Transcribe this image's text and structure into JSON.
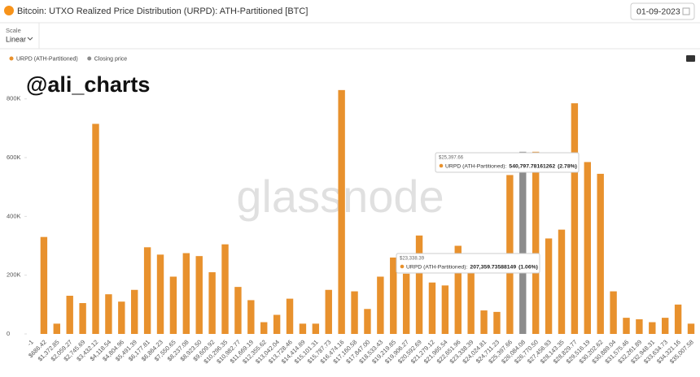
{
  "header": {
    "title": "Bitcoin: UTXO Realized Price Distribution (URPD): ATH-Partitioned [BTC]",
    "date": "01-09-2023",
    "scale_label": "Scale",
    "scale_value": "Linear"
  },
  "watermark": "@ali_charts",
  "brand": "glassnode",
  "chart_data": {
    "type": "bar",
    "categories": [
      "-1",
      "$686.42",
      "$1,372.85",
      "$2,059.27",
      "$2,745.69",
      "$3,432.12",
      "$4,118.54",
      "$4,804.96",
      "$5,491.39",
      "$6,177.81",
      "$6,864.23",
      "$7,550.65",
      "$8,237.08",
      "$8,923.50",
      "$9,609.92",
      "$10,296.35",
      "$10,982.77",
      "$11,669.19",
      "$12,355.62",
      "$13,042.04",
      "$13,728.46",
      "$14,414.89",
      "$15,101.31",
      "$15,787.73",
      "$16,474.16",
      "$17,160.58",
      "$17,847.00",
      "$18,533.43",
      "$19,219.85",
      "$19,906.27",
      "$20,592.69",
      "$21,279.12",
      "$21,965.54",
      "$22,651.96",
      "$23,338.39",
      "$24,024.81",
      "$24,711.23",
      "$25,397.66",
      "$26,084.08",
      "$26,770.50",
      "$27,456.93",
      "$28,143.35",
      "$28,829.77",
      "$29,516.19",
      "$30,202.62",
      "$30,889.04",
      "$31,575.46",
      "$32,261.89",
      "$32,948.31",
      "$33,634.73",
      "$34,321.16",
      "$35,007.58"
    ],
    "series": [
      {
        "name": "URPD (ATH-Partitioned)",
        "color": "#e8912d",
        "values": [
          null,
          330000,
          35000,
          130000,
          105000,
          715000,
          135000,
          110000,
          150000,
          295000,
          270000,
          195000,
          275000,
          265000,
          210000,
          305000,
          160000,
          115000,
          40000,
          65000,
          120000,
          35000,
          35000,
          150000,
          830000,
          145000,
          85000,
          195000,
          260000,
          205000,
          335000,
          175000,
          165000,
          300000,
          207359.73588149,
          80000,
          75000,
          540797.78161262,
          null,
          620000,
          325000,
          355000,
          785000,
          585000,
          545000,
          145000,
          55000,
          50000,
          40000,
          55000,
          100000,
          35000
        ]
      },
      {
        "name": "Closing price",
        "color": "#8c8c8c",
        "values": [
          null,
          null,
          null,
          null,
          null,
          null,
          null,
          null,
          null,
          null,
          null,
          null,
          null,
          null,
          null,
          null,
          null,
          null,
          null,
          null,
          null,
          null,
          null,
          null,
          null,
          null,
          null,
          null,
          null,
          null,
          null,
          null,
          null,
          null,
          null,
          null,
          null,
          null,
          620000,
          null,
          null,
          null,
          null,
          null,
          null,
          null,
          null,
          null,
          null,
          null,
          null,
          null
        ]
      }
    ],
    "ylim": [
      0,
      860000
    ],
    "yticks": [
      0,
      {
        "value": 200000,
        "label": "200K"
      },
      {
        "value": 400000,
        "label": "400K"
      },
      {
        "value": 600000,
        "label": "600K"
      },
      {
        "value": 800000,
        "label": "800K"
      }
    ],
    "grid": false,
    "tooltips": [
      {
        "title": "$25,397.66",
        "label": "URPD (ATH-Partitioned):",
        "value": "540,797.78161262",
        "share": "(2.78%)"
      },
      {
        "title": "$23,338.39",
        "label": "URPD (ATH-Partitioned):",
        "value": "207,359.73588149",
        "share": "(1.06%)"
      }
    ]
  }
}
